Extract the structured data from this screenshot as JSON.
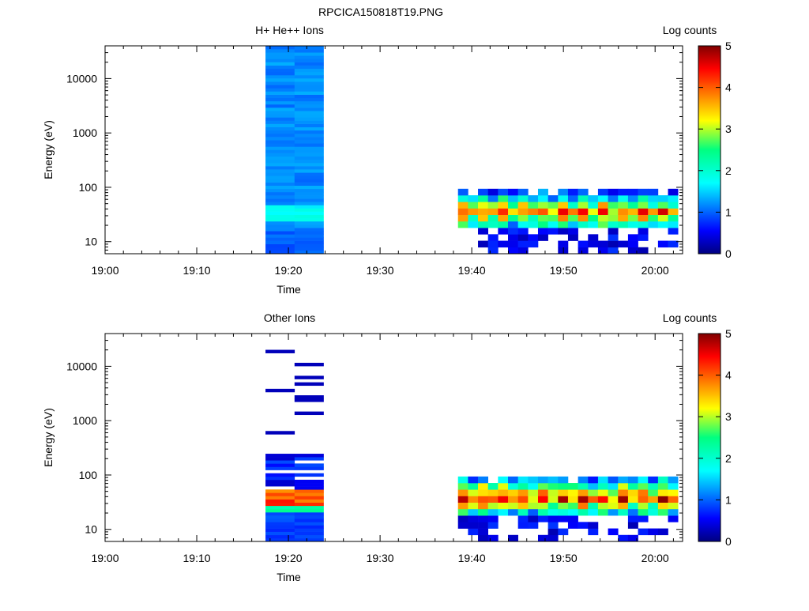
{
  "figure": {
    "title": "RPCICA150818T19.PNG"
  },
  "chart_data": [
    {
      "type": "heatmap",
      "title": "H+ He++ Ions",
      "xlabel": "Time",
      "ylabel": "Energy (eV)",
      "x_ticks": [
        "19:00",
        "19:10",
        "19:20",
        "19:30",
        "19:40",
        "19:50",
        "20:00"
      ],
      "xlim": [
        "19:00",
        "20:03"
      ],
      "y_scale": "log",
      "y_ticks": [
        10,
        100,
        1000,
        10000
      ],
      "ylim": [
        6,
        40000
      ],
      "colorbar": {
        "label": "Log counts",
        "ticks": [
          0,
          1,
          2,
          3,
          4,
          5
        ],
        "range": [
          0,
          5
        ]
      },
      "sweeps": [
        {
          "start": "19:17:30",
          "end": "19:20:40",
          "profile": "burst",
          "seed": 11
        },
        {
          "start": "19:20:40",
          "end": "19:23:50",
          "profile": "burst",
          "seed": 23
        },
        {
          "start": "19:38:30",
          "end": "20:02:30",
          "profile": "beam",
          "seed": 37
        }
      ]
    },
    {
      "type": "heatmap",
      "title": "Other Ions",
      "xlabel": "Time",
      "ylabel": "Energy (eV)",
      "x_ticks": [
        "19:00",
        "19:10",
        "19:20",
        "19:30",
        "19:40",
        "19:50",
        "20:00"
      ],
      "xlim": [
        "19:00",
        "20:03"
      ],
      "y_scale": "log",
      "y_ticks": [
        10,
        100,
        1000,
        10000
      ],
      "ylim": [
        6,
        40000
      ],
      "colorbar": {
        "label": "Log counts",
        "ticks": [
          0,
          1,
          2,
          3,
          4,
          5
        ],
        "range": [
          0,
          5
        ]
      },
      "sweeps": [
        {
          "start": "19:17:30",
          "end": "19:20:40",
          "profile": "sparse",
          "seed": 51
        },
        {
          "start": "19:20:40",
          "end": "19:23:50",
          "profile": "sparse",
          "seed": 63
        },
        {
          "start": "19:38:30",
          "end": "20:02:30",
          "profile": "beam2",
          "seed": 77
        }
      ]
    }
  ]
}
